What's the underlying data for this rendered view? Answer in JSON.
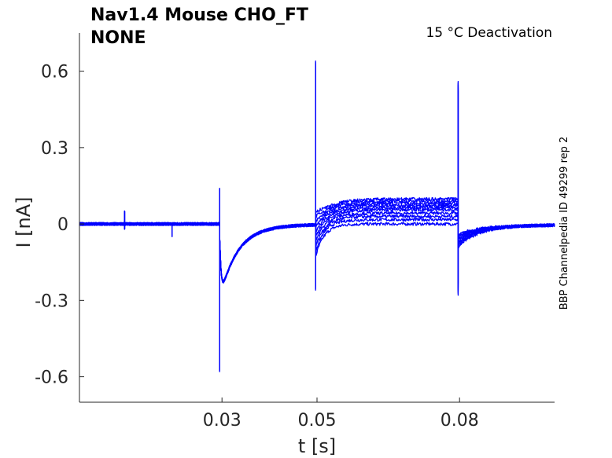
{
  "chart_data": {
    "type": "line",
    "title": "Nav1.4  Mouse  CHO_FT",
    "subtitle": "NONE",
    "condition": "15 °C  Deactivation",
    "side_label": "BBP Channelpedia ID 49299 rep 2",
    "xlabel": "t [s]",
    "ylabel": "I [nA]",
    "xlim": [
      0.0,
      0.1
    ],
    "ylim": [
      -0.7,
      0.75
    ],
    "xticks": [
      0.03,
      0.05,
      0.08
    ],
    "xtick_labels": [
      "0.03",
      "0.05",
      "0.08"
    ],
    "yticks": [
      -0.6,
      -0.3,
      0,
      0.3,
      0.6
    ],
    "ytick_labels": [
      "-0.6",
      "-0.3",
      "0",
      "0.3",
      "0.6"
    ],
    "grid": false,
    "line_color": "#0000ff",
    "trace_count": 10,
    "steps": [
      0.0,
      0.02,
      0.035,
      0.05,
      0.065,
      0.075,
      0.085,
      0.095,
      0.105,
      0.115
    ],
    "events": [
      {
        "t": 0.0095,
        "spike": 0.05
      },
      {
        "t": 0.0195,
        "spike": -0.05
      },
      {
        "t": 0.0295,
        "min": -0.58,
        "max": 0.14
      },
      {
        "t": 0.0497,
        "min": -0.26,
        "max": 0.64
      },
      {
        "t": 0.0797,
        "min": -0.28,
        "max": 0.56
      }
    ]
  }
}
